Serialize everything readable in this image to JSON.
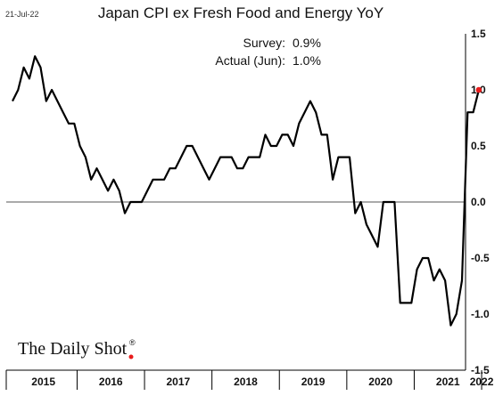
{
  "date_stamp": "21-Jul-22",
  "brand": {
    "text": "The Daily Shot",
    "mark": "®"
  },
  "colors": {
    "line": "#000000",
    "marker": "#e81c1c",
    "zero_line": "#555555",
    "frame": "#000000"
  },
  "chart_data": {
    "type": "line",
    "title": "Japan CPI ex Fresh Food and Energy YoY",
    "xlabel": "",
    "ylabel": "",
    "ylim": [
      -1.5,
      1.5
    ],
    "yticks": [
      "1.5",
      "1.0",
      "0.5",
      "0.0",
      "-0.5",
      "-1.0",
      "-1.5"
    ],
    "x_categories": [
      "2015",
      "2016",
      "2017",
      "2018",
      "2019",
      "2020",
      "2021",
      "2022"
    ],
    "annotations": [
      {
        "label": "Survey:",
        "value": "0.9%"
      },
      {
        "label": "Actual (Jun):",
        "value": "1.0%"
      }
    ],
    "series": [
      {
        "x_start": "2015-01",
        "frequency": "monthly",
        "values": [
          0.9,
          1.0,
          1.2,
          1.1,
          1.3,
          1.2,
          0.9,
          1.0,
          0.9,
          0.8,
          0.7,
          0.7,
          0.5,
          0.4,
          0.2,
          0.3,
          0.2,
          0.1,
          0.2,
          0.1,
          -0.1,
          0.0,
          0.0,
          0.0,
          0.1,
          0.2,
          0.2,
          0.2,
          0.3,
          0.3,
          0.4,
          0.5,
          0.5,
          0.4,
          0.3,
          0.2,
          0.3,
          0.4,
          0.4,
          0.4,
          0.3,
          0.3,
          0.4,
          0.4,
          0.4,
          0.6,
          0.5,
          0.5,
          0.6,
          0.6,
          0.5,
          0.7,
          0.8,
          0.9,
          0.8,
          0.6,
          0.6,
          0.2,
          0.4,
          0.4,
          0.4,
          -0.1,
          0.0,
          -0.2,
          -0.3,
          -0.4,
          0.0,
          0.0,
          0.0,
          -0.9,
          -0.9,
          -0.9,
          -0.6,
          -0.5,
          -0.5,
          -0.7,
          -0.6,
          -0.7,
          -1.1,
          -1.0,
          -0.7,
          0.8,
          0.8,
          1.0
        ]
      }
    ],
    "highlight": {
      "x": "2022-06",
      "y": 1.0
    }
  }
}
